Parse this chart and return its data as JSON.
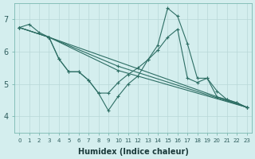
{
  "xlabel": "Humidex (Indice chaleur)",
  "bg_color": "#d4eeee",
  "line_color": "#2d6e64",
  "grid_color": "#b8d8d8",
  "xlim": [
    -0.5,
    23.5
  ],
  "ylim": [
    3.5,
    7.5
  ],
  "yticks": [
    4,
    5,
    6,
    7
  ],
  "lines": [
    {
      "x": [
        0,
        1,
        2,
        3,
        4,
        5,
        6,
        7,
        8,
        9,
        10,
        11,
        12,
        13,
        14,
        15,
        16,
        17,
        18,
        19,
        20,
        21,
        22,
        23
      ],
      "y": [
        6.75,
        6.85,
        6.6,
        6.45,
        5.78,
        5.38,
        5.38,
        5.12,
        4.72,
        4.18,
        4.62,
        5.0,
        5.25,
        5.75,
        6.2,
        7.35,
        7.1,
        6.25,
        5.18,
        5.18,
        4.6,
        4.52,
        4.42,
        4.28
      ]
    },
    {
      "x": [
        0,
        3,
        23
      ],
      "y": [
        6.75,
        6.45,
        4.28
      ]
    },
    {
      "x": [
        0,
        3,
        10,
        23
      ],
      "y": [
        6.75,
        6.45,
        5.42,
        4.28
      ]
    },
    {
      "x": [
        0,
        3,
        10,
        23
      ],
      "y": [
        6.75,
        6.45,
        5.55,
        4.28
      ]
    },
    {
      "x": [
        3,
        4,
        5,
        6,
        7,
        8,
        9,
        10,
        11,
        12,
        13,
        14,
        15,
        16,
        17,
        18,
        19,
        20,
        21,
        22,
        23
      ],
      "y": [
        6.45,
        5.78,
        5.38,
        5.38,
        5.12,
        4.72,
        4.72,
        5.05,
        5.3,
        5.5,
        5.75,
        6.05,
        6.45,
        6.7,
        5.18,
        5.05,
        5.18,
        4.78,
        4.52,
        4.42,
        4.28
      ]
    }
  ]
}
